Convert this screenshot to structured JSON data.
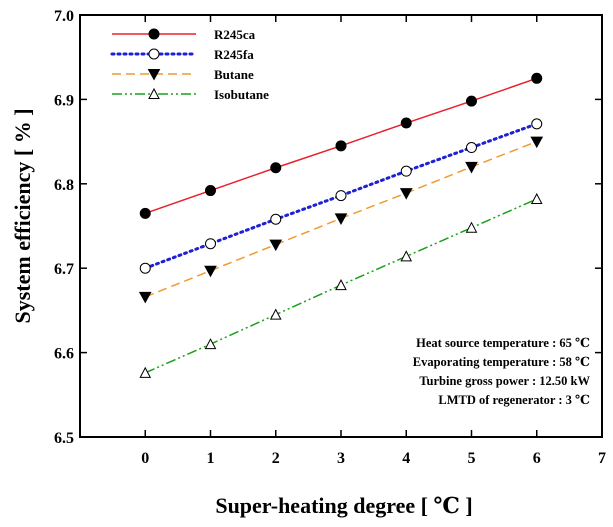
{
  "chart_data": {
    "type": "line",
    "xlabel": "Super-heating degree [ ℃ ]",
    "ylabel": "System efficiency [ % ]",
    "xlim": [
      -1,
      7
    ],
    "ylim": [
      6.5,
      7.0
    ],
    "xticks": [
      "0",
      "1",
      "2",
      "3",
      "4",
      "5",
      "6",
      "7"
    ],
    "yticks": [
      "6.5",
      "6.6",
      "6.7",
      "6.8",
      "6.9",
      "7.0"
    ],
    "x": [
      0,
      1,
      2,
      3,
      4,
      5,
      6
    ],
    "legend_position": "top-left",
    "grid": false,
    "series": [
      {
        "name": "R245ca",
        "values": [
          6.765,
          6.792,
          6.819,
          6.845,
          6.872,
          6.898,
          6.925
        ],
        "color": "#e8202a",
        "dash": "solid",
        "marker": "filled-circle"
      },
      {
        "name": "R245fa",
        "values": [
          6.7,
          6.729,
          6.758,
          6.786,
          6.815,
          6.843,
          6.871
        ],
        "color": "#1f1fd6",
        "dash": "dotted",
        "marker": "open-circle"
      },
      {
        "name": "Butane",
        "values": [
          6.666,
          6.697,
          6.728,
          6.759,
          6.789,
          6.82,
          6.85
        ],
        "color": "#f09a30",
        "dash": "dashed",
        "marker": "filled-triangle-down"
      },
      {
        "name": "Isobutane",
        "values": [
          6.576,
          6.61,
          6.645,
          6.68,
          6.714,
          6.748,
          6.782
        ],
        "color": "#1aa01a",
        "dash": "dash-dot-dot",
        "marker": "open-triangle-up"
      }
    ],
    "annotations": [
      "Heat source temperature : 65 ℃",
      "Evaporating temperature : 58 ℃",
      "Turbine gross power : 12.50 kW",
      "LMTD of regenerator : 3 ℃"
    ]
  }
}
